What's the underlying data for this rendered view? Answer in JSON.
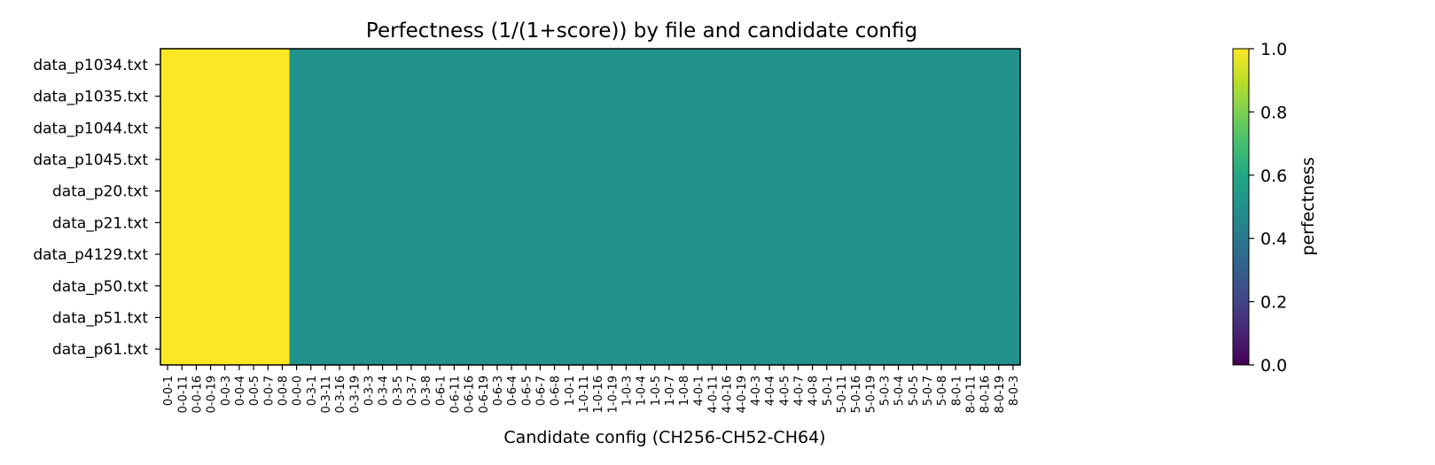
{
  "chart_data": {
    "type": "heatmap",
    "title": "Perfectness (1/(1+score)) by file and candidate config",
    "xlabel": "Candidate config (CH256-CH52-CH64)",
    "ylabel": "",
    "rows": [
      "data_p1034.txt",
      "data_p1035.txt",
      "data_p1044.txt",
      "data_p1045.txt",
      "data_p20.txt",
      "data_p21.txt",
      "data_p4129.txt",
      "data_p50.txt",
      "data_p51.txt",
      "data_p61.txt"
    ],
    "columns": [
      "0-0-1",
      "0-0-11",
      "0-0-16",
      "0-0-19",
      "0-0-3",
      "0-0-4",
      "0-0-5",
      "0-0-7",
      "0-0-8",
      "0-0-0",
      "0-3-1",
      "0-3-11",
      "0-3-16",
      "0-3-19",
      "0-3-3",
      "0-3-4",
      "0-3-5",
      "0-3-7",
      "0-3-8",
      "0-6-1",
      "0-6-11",
      "0-6-16",
      "0-6-19",
      "0-6-3",
      "0-6-4",
      "0-6-5",
      "0-6-7",
      "0-6-8",
      "1-0-1",
      "1-0-11",
      "1-0-16",
      "1-0-19",
      "1-0-3",
      "1-0-4",
      "1-0-5",
      "1-0-7",
      "1-0-8",
      "4-0-1",
      "4-0-11",
      "4-0-16",
      "4-0-19",
      "4-0-3",
      "4-0-4",
      "4-0-5",
      "4-0-7",
      "4-0-8",
      "5-0-1",
      "5-0-11",
      "5-0-16",
      "5-0-19",
      "5-0-3",
      "5-0-4",
      "5-0-5",
      "5-0-7",
      "5-0-8",
      "8-0-1",
      "8-0-11",
      "8-0-16",
      "8-0-19",
      "8-0-3"
    ],
    "values_rule": {
      "columns_with_value_1": 9,
      "high": 1.0,
      "low": 0.5
    },
    "colorbar": {
      "label": "perfectness",
      "range": [
        0,
        1
      ],
      "ticks": [
        "0.0",
        "0.2",
        "0.4",
        "0.6",
        "0.8",
        "1.0"
      ],
      "colormap": "viridis"
    },
    "colors": {
      "high": "#fde725",
      "low": "#21918c"
    }
  }
}
